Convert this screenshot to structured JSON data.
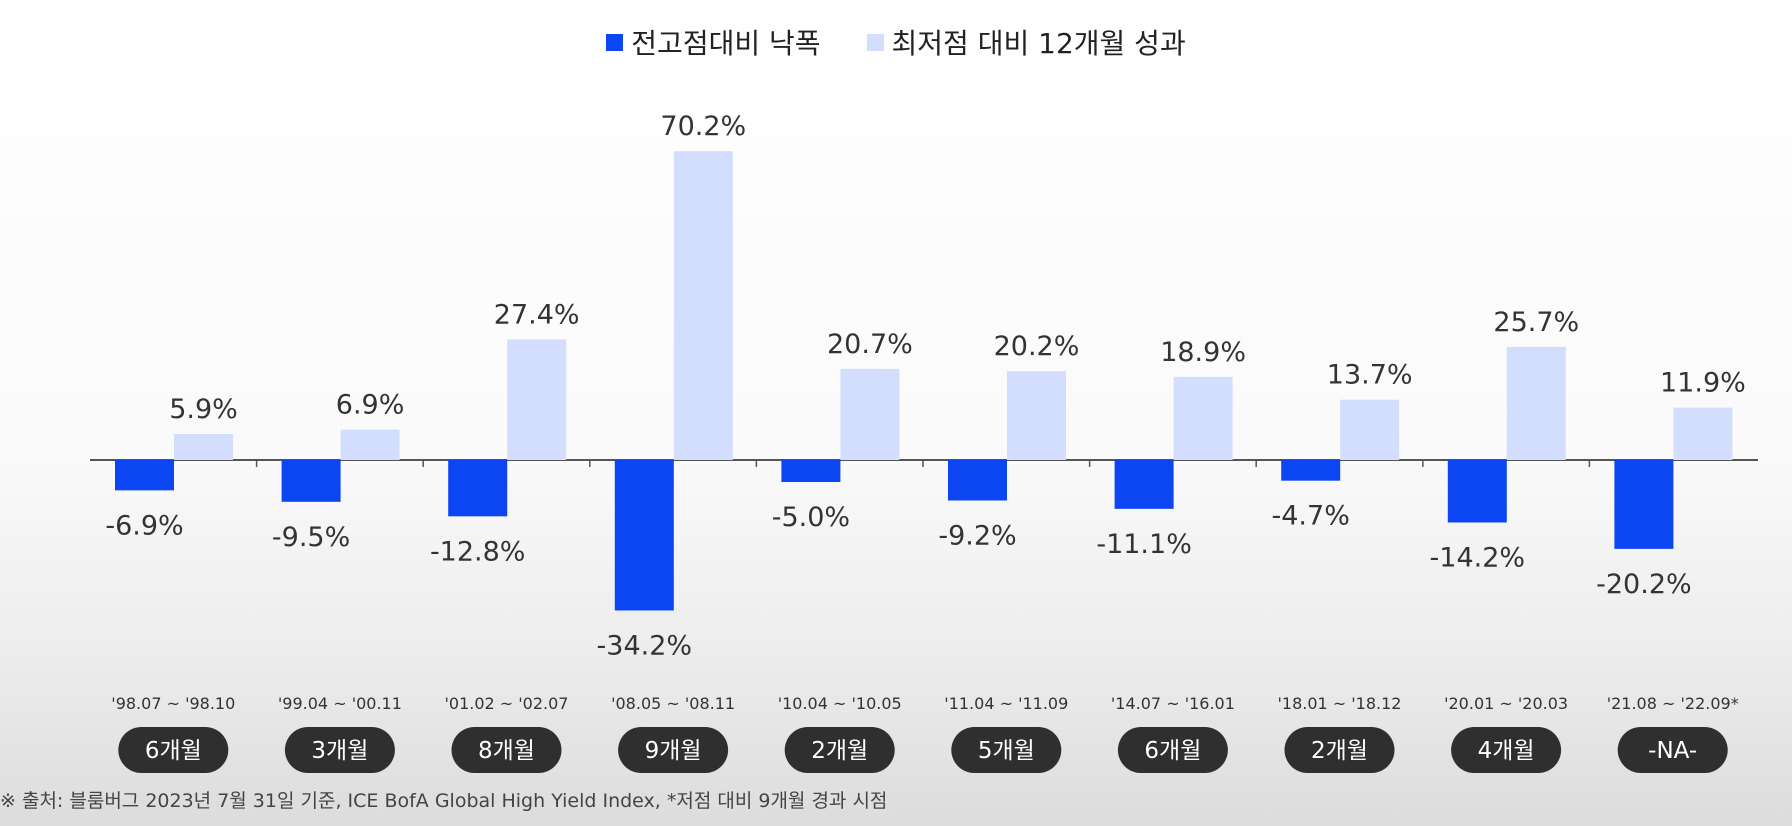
{
  "legend": {
    "drawdown_label": "전고점대비 낙폭",
    "recovery_label": "최저점 대비 12개월 성과"
  },
  "colors": {
    "drawdown": "#0b46f2",
    "recovery": "#d3defe",
    "pill_bg": "#2f2f2f",
    "pill_text": "#ffffff",
    "axis": "#555555"
  },
  "chart_data": {
    "type": "bar",
    "categories": [
      "'98.07 ~ '98.10",
      "'99.04 ~ '00.11",
      "'01.02 ~ '02.07",
      "'08.05 ~ '08.11",
      "'10.04 ~ '10.05",
      "'11.04 ~ '11.09",
      "'14.07 ~ '16.01",
      "'18.01 ~ '18.12",
      "'20.01 ~ '20.03",
      "'21.08 ~ '22.09*"
    ],
    "durations": [
      "6개월",
      "3개월",
      "8개월",
      "9개월",
      "2개월",
      "5개월",
      "6개월",
      "2개월",
      "4개월",
      "-NA-"
    ],
    "series": [
      {
        "name": "전고점대비 낙폭",
        "values": [
          -6.9,
          -9.5,
          -12.8,
          -34.2,
          -5.0,
          -9.2,
          -11.1,
          -4.7,
          -14.2,
          -20.2
        ],
        "labels": [
          "-6.9%",
          "-9.5%",
          "-12.8%",
          "-34.2%",
          "-5.0%",
          "-9.2%",
          "-11.1%",
          "-4.7%",
          "-14.2%",
          "-20.2%"
        ]
      },
      {
        "name": "최저점 대비 12개월 성과",
        "values": [
          5.9,
          6.9,
          27.4,
          70.2,
          20.7,
          20.2,
          18.9,
          13.7,
          25.7,
          11.9
        ],
        "labels": [
          "5.9%",
          "6.9%",
          "27.4%",
          "70.2%",
          "20.7%",
          "20.2%",
          "18.9%",
          "13.7%",
          "25.7%",
          "11.9%"
        ]
      }
    ],
    "ylim": [
      -35,
      71
    ],
    "grid": false,
    "legend_position": "top-center"
  },
  "footnote": "※ 출처: 블룸버그 2023년 7월 31일 기준, ICE BofA Global High Yield Index, *저점 대비 9개월 경과 시점"
}
